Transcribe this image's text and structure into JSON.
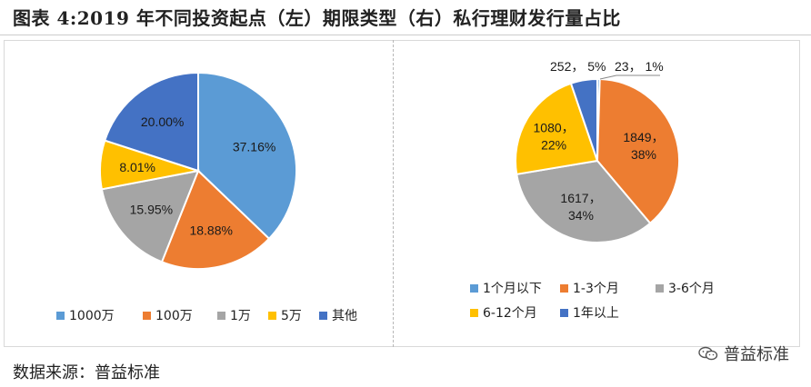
{
  "figure": {
    "title": "图表 4:2019 年不同投资起点（左）期限类型（右）私行理财发行量占比",
    "source": "数据来源：普益标准",
    "watermark": "普益标准"
  },
  "colors": {
    "blue": "#5B9BD5",
    "orange": "#ED7D31",
    "gray": "#A5A5A5",
    "yellow": "#FFC000",
    "navy": "#4472C4"
  },
  "chart_data": [
    {
      "type": "pie",
      "title": "",
      "legend_position": "bottom",
      "slices": [
        {
          "name": "1000万",
          "value": 37.16,
          "label": "37.16%",
          "color": "#5B9BD5"
        },
        {
          "name": "100万",
          "value": 18.88,
          "label": "18.88%",
          "color": "#ED7D31"
        },
        {
          "name": "1万",
          "value": 15.95,
          "label": "15.95%",
          "color": "#A5A5A5"
        },
        {
          "name": "5万",
          "value": 8.01,
          "label": "8.01%",
          "color": "#FFC000"
        },
        {
          "name": "其他",
          "value": 20.0,
          "label": "20.00%",
          "color": "#4472C4"
        }
      ]
    },
    {
      "type": "pie",
      "title": "",
      "legend_position": "bottom",
      "slices": [
        {
          "name": "1个月以下",
          "value": 23,
          "label_line1": "23，",
          "label_line2": "1%",
          "color": "#5B9BD5"
        },
        {
          "name": "1-3个月",
          "value": 1849,
          "label_line1": "1849，",
          "label_line2": "38%",
          "color": "#ED7D31"
        },
        {
          "name": "3-6个月",
          "value": 1617,
          "label_line1": "1617，",
          "label_line2": "34%",
          "color": "#A5A5A5"
        },
        {
          "name": "6-12个月",
          "value": 1080,
          "label_line1": "1080，",
          "label_line2": "22%",
          "color": "#FFC000"
        },
        {
          "name": "1年以上",
          "value": 252,
          "label_line1": "252，",
          "label_line2": "5%",
          "color": "#4472C4"
        }
      ]
    }
  ]
}
